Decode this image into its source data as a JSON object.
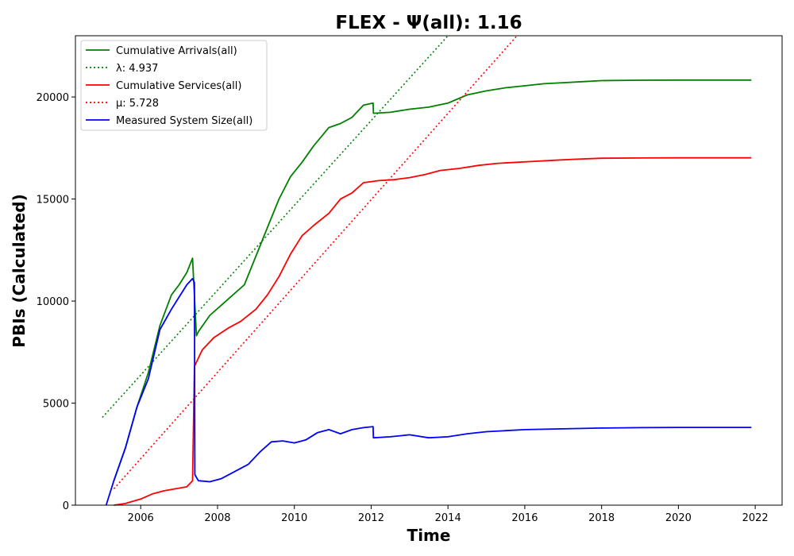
{
  "chart_data": {
    "type": "line",
    "title": "FLEX -  Ψ(all): 1.16",
    "xlabel": "Time",
    "ylabel": "PBIs (Calculated)",
    "xlim": [
      2004.3,
      2022.7
    ],
    "ylim": [
      0,
      23000
    ],
    "x_ticks": [
      "2006",
      "2008",
      "2010",
      "2012",
      "2014",
      "2016",
      "2018",
      "2020",
      "2022"
    ],
    "y_ticks": [
      "0",
      "5000",
      "10000",
      "15000",
      "20000"
    ],
    "grid": false,
    "legend_position": "upper left",
    "series": [
      {
        "name": "Cumulative Arrivals(all)",
        "color": "#008000",
        "style": "solid",
        "x": [
          2005.3,
          2005.6,
          2005.9,
          2006.2,
          2006.5,
          2006.8,
          2007.0,
          2007.2,
          2007.35,
          2007.45,
          2007.5,
          2007.8,
          2008.1,
          2008.4,
          2008.7,
          2009.0,
          2009.3,
          2009.6,
          2009.9,
          2010.2,
          2010.5,
          2010.9,
          2011.2,
          2011.5,
          2011.8,
          2012.05,
          2012.06,
          2012.5,
          2013.0,
          2013.5,
          2014.0,
          2014.5,
          2015.0,
          2015.5,
          2016.0,
          2016.5,
          2017.0,
          2017.5,
          2018.0,
          2019.0,
          2020.0,
          2021.0,
          2021.9
        ],
        "values": [
          1200,
          2800,
          4800,
          6500,
          8800,
          10300,
          10800,
          11400,
          12100,
          8300,
          8500,
          9300,
          9800,
          10300,
          10800,
          12200,
          13600,
          15000,
          16100,
          16800,
          17600,
          18500,
          18700,
          19000,
          19600,
          19700,
          19200,
          19250,
          19400,
          19500,
          19700,
          20100,
          20300,
          20450,
          20550,
          20650,
          20700,
          20750,
          20800,
          20820,
          20830,
          20830,
          20830
        ]
      },
      {
        "name": "λ: 4.937",
        "color": "#008000",
        "style": "dotted",
        "x": [
          2005.0,
          2014.0
        ],
        "values": [
          4300,
          23000
        ]
      },
      {
        "name": "Cumulative Services(all)",
        "color": "#ff0000",
        "style": "solid",
        "x": [
          2005.3,
          2005.6,
          2006.0,
          2006.3,
          2006.6,
          2006.9,
          2007.2,
          2007.35,
          2007.4,
          2007.6,
          2007.9,
          2008.3,
          2008.6,
          2009.0,
          2009.3,
          2009.6,
          2009.9,
          2010.2,
          2010.5,
          2010.9,
          2011.2,
          2011.5,
          2011.8,
          2012.2,
          2012.6,
          2013.0,
          2013.4,
          2013.8,
          2014.3,
          2014.8,
          2015.3,
          2015.8,
          2016.3,
          2016.8,
          2017.3,
          2018.0,
          2019.0,
          2020.0,
          2021.0,
          2021.9
        ],
        "values": [
          0,
          80,
          300,
          550,
          700,
          800,
          900,
          1200,
          6800,
          7600,
          8200,
          8700,
          9000,
          9600,
          10300,
          11200,
          12300,
          13200,
          13700,
          14300,
          15000,
          15300,
          15800,
          15900,
          15950,
          16050,
          16200,
          16400,
          16500,
          16650,
          16750,
          16800,
          16850,
          16900,
          16950,
          17000,
          17010,
          17020,
          17020,
          17020
        ]
      },
      {
        "name": "μ: 5.728",
        "color": "#ff0000",
        "style": "dotted",
        "x": [
          2005.3,
          2015.8
        ],
        "values": [
          800,
          23000
        ]
      },
      {
        "name": "Measured System Size(all)",
        "color": "#0000ff",
        "style": "solid",
        "x": [
          2005.1,
          2005.3,
          2005.6,
          2005.9,
          2006.2,
          2006.5,
          2006.8,
          2007.0,
          2007.2,
          2007.35,
          2007.4,
          2007.41,
          2007.5,
          2007.8,
          2008.1,
          2008.5,
          2008.8,
          2009.1,
          2009.4,
          2009.7,
          2010.0,
          2010.3,
          2010.6,
          2010.9,
          2011.2,
          2011.5,
          2011.8,
          2012.05,
          2012.06,
          2012.5,
          2013.0,
          2013.5,
          2014.0,
          2014.5,
          2015.0,
          2015.5,
          2016.0,
          2016.5,
          2017.0,
          2017.5,
          2018.0,
          2019.0,
          2020.0,
          2021.0,
          2021.9
        ],
        "values": [
          0,
          1200,
          2800,
          4800,
          6200,
          8600,
          9600,
          10200,
          10800,
          11100,
          10900,
          1500,
          1200,
          1150,
          1300,
          1700,
          2000,
          2600,
          3100,
          3150,
          3050,
          3200,
          3550,
          3700,
          3500,
          3700,
          3800,
          3850,
          3300,
          3350,
          3450,
          3300,
          3350,
          3500,
          3600,
          3650,
          3700,
          3720,
          3740,
          3760,
          3780,
          3800,
          3810,
          3810,
          3810
        ]
      }
    ]
  }
}
